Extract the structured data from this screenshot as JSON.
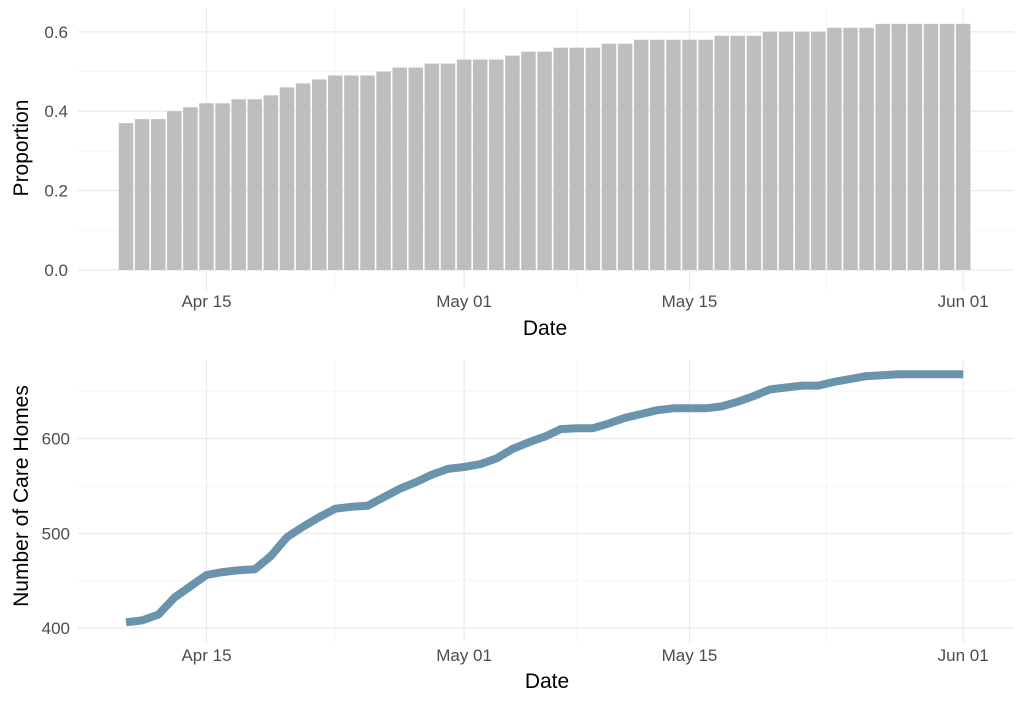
{
  "colors": {
    "bar": "#bebebe",
    "line": "#6a94ab",
    "grid_major": "#ebebeb",
    "grid_minor": "#f5f5f5"
  },
  "chart_data": [
    {
      "type": "bar",
      "x_start": "2020-04-10",
      "values": [
        0.37,
        0.38,
        0.38,
        0.4,
        0.41,
        0.42,
        0.42,
        0.43,
        0.43,
        0.44,
        0.46,
        0.47,
        0.48,
        0.49,
        0.49,
        0.49,
        0.5,
        0.51,
        0.51,
        0.52,
        0.52,
        0.53,
        0.53,
        0.53,
        0.54,
        0.55,
        0.55,
        0.56,
        0.56,
        0.56,
        0.57,
        0.57,
        0.58,
        0.58,
        0.58,
        0.58,
        0.58,
        0.59,
        0.59,
        0.59,
        0.6,
        0.6,
        0.6,
        0.6,
        0.61,
        0.61,
        0.61,
        0.62,
        0.62,
        0.62,
        0.62,
        0.62,
        0.62
      ],
      "xlabel": "Date",
      "ylabel": "Proportion",
      "ylim": [
        0,
        0.62
      ],
      "yticks": [
        "0.0",
        "0.2",
        "0.4",
        "0.6"
      ],
      "xticks": [
        "Apr 15",
        "May 01",
        "May 15",
        "Jun 01"
      ],
      "grid": true
    },
    {
      "type": "line",
      "x_start": "2020-04-10",
      "values": [
        406,
        408,
        414,
        432,
        444,
        456,
        459,
        461,
        462,
        476,
        496,
        507,
        517,
        526,
        528,
        529,
        538,
        547,
        554,
        562,
        568,
        570,
        573,
        579,
        589,
        596,
        602,
        610,
        611,
        611,
        616,
        622,
        626,
        630,
        632,
        632,
        632,
        634,
        639,
        645,
        652,
        654,
        656,
        656,
        660,
        663,
        666,
        667,
        668,
        668,
        668,
        668,
        668
      ],
      "xlabel": "Date",
      "ylabel": "Number of Care Homes",
      "ylim": [
        395,
        685
      ],
      "yticks": [
        "400",
        "500",
        "600"
      ],
      "xticks": [
        "Apr 15",
        "May 01",
        "May 15",
        "Jun 01"
      ],
      "grid": true
    }
  ]
}
